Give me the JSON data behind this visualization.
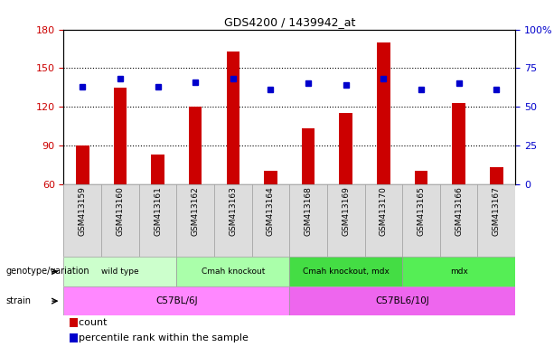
{
  "title": "GDS4200 / 1439942_at",
  "samples": [
    "GSM413159",
    "GSM413160",
    "GSM413161",
    "GSM413162",
    "GSM413163",
    "GSM413164",
    "GSM413168",
    "GSM413169",
    "GSM413170",
    "GSM413165",
    "GSM413166",
    "GSM413167"
  ],
  "counts": [
    90,
    135,
    83,
    120,
    163,
    70,
    103,
    115,
    170,
    70,
    123,
    73
  ],
  "percentiles": [
    63,
    68,
    63,
    66,
    68,
    61,
    65,
    64,
    68,
    61,
    65,
    61
  ],
  "ylim_left": [
    60,
    180
  ],
  "ylim_right": [
    0,
    100
  ],
  "yticks_left": [
    60,
    90,
    120,
    150,
    180
  ],
  "yticks_right": [
    0,
    25,
    50,
    75,
    100
  ],
  "ytick_labels_right": [
    "0",
    "25",
    "50",
    "75",
    "100%"
  ],
  "bar_color": "#cc0000",
  "dot_color": "#0000cc",
  "bar_bottom": 60,
  "grid_lines": [
    90,
    120,
    150
  ],
  "genotype_groups": [
    {
      "label": "wild type",
      "start": 0,
      "end": 3,
      "color": "#ccffcc"
    },
    {
      "label": "Cmah knockout",
      "start": 3,
      "end": 6,
      "color": "#aaffaa"
    },
    {
      "label": "Cmah knockout, mdx",
      "start": 6,
      "end": 9,
      "color": "#44dd44"
    },
    {
      "label": "mdx",
      "start": 9,
      "end": 12,
      "color": "#55ee55"
    }
  ],
  "strain_groups": [
    {
      "label": "C57BL/6J",
      "start": 0,
      "end": 6,
      "color": "#ff88ff"
    },
    {
      "label": "C57BL6/10J",
      "start": 6,
      "end": 12,
      "color": "#ee66ee"
    }
  ],
  "genotype_label": "genotype/variation",
  "strain_label": "strain",
  "legend_count_label": "count",
  "legend_pct_label": "percentile rank within the sample",
  "tick_label_color_left": "#cc0000",
  "tick_label_color_right": "#0000cc",
  "background_color": "#ffffff",
  "plot_bg_color": "#ffffff",
  "label_bg_color": "#dddddd",
  "bar_width": 0.35
}
